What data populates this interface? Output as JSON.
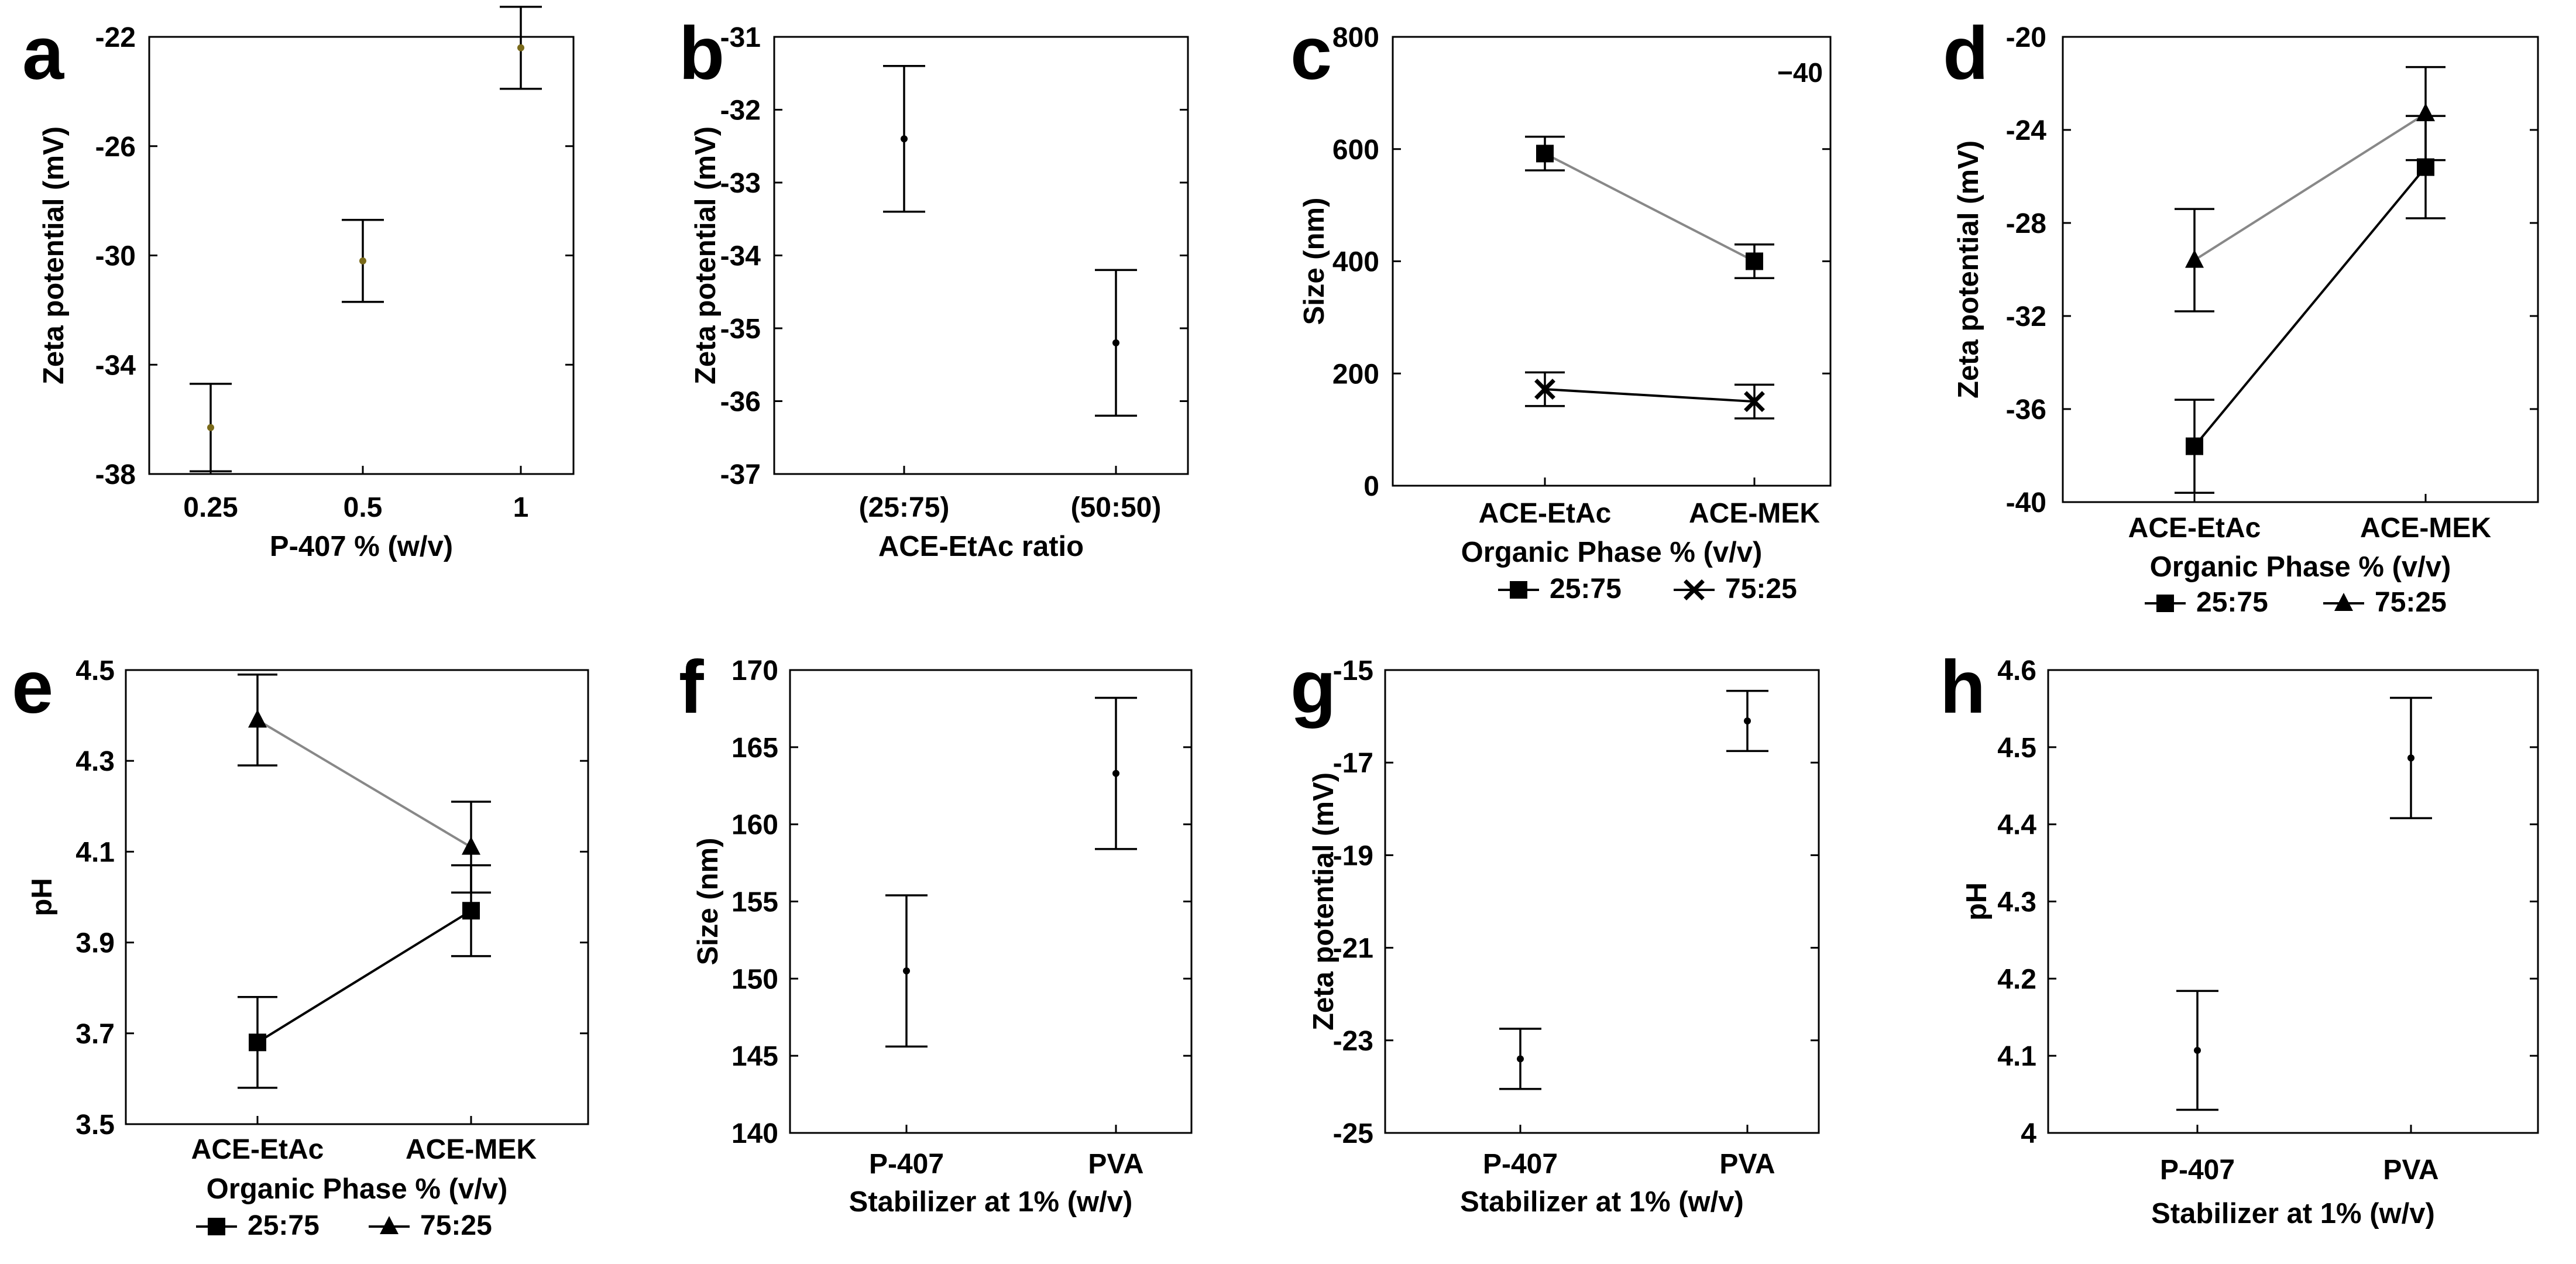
{
  "figure": {
    "chart_data": [
      {
        "panel": "a",
        "type": "scatter",
        "xlabel": "P-407 % (w/v)",
        "ylabel": "Zeta potential (mV)",
        "categories": [
          "0.25",
          "0.5",
          "1"
        ],
        "ylim": [
          -38,
          -22
        ],
        "yticks": [
          -38,
          -34,
          -30,
          -26,
          -22
        ],
        "ytick_labels": [
          "-38",
          "-34",
          "-30",
          "-26",
          "-22"
        ],
        "series": [
          {
            "name": "mean",
            "values": [
              -36.3,
              -30.2,
              -22.4
            ],
            "errors": [
              1.6,
              1.5,
              1.5
            ],
            "marker": "dot",
            "marker_color": "#7a6a1a"
          }
        ],
        "legend": []
      },
      {
        "panel": "b",
        "type": "scatter",
        "xlabel": "ACE-EtAc ratio",
        "ylabel": "Zeta potential (mV)",
        "categories": [
          "(25:75)",
          "(50:50)"
        ],
        "ylim": [
          -37,
          -31
        ],
        "yticks": [
          -37,
          -36,
          -35,
          -34,
          -33,
          -32,
          -31
        ],
        "ytick_labels": [
          "-37",
          "-36",
          "-35",
          "-34",
          "-33",
          "-32",
          "-31"
        ],
        "series": [
          {
            "name": "mean",
            "values": [
              -32.4,
              -35.2
            ],
            "errors": [
              1.0,
              1.0
            ],
            "marker": "dot",
            "marker_color": "#000000"
          }
        ],
        "legend": []
      },
      {
        "panel": "c",
        "type": "line",
        "xlabel": "Organic Phase % (v/v)",
        "ylabel": "Size (nm)",
        "categories": [
          "ACE-EtAc",
          "ACE-MEK"
        ],
        "ylim": [
          0,
          800
        ],
        "yticks": [
          0,
          200,
          400,
          600,
          800
        ],
        "ytick_labels": [
          "0",
          "200",
          "400",
          "600",
          "800"
        ],
        "annotation": "−40",
        "series": [
          {
            "name": "25:75",
            "values": [
              592,
              400
            ],
            "errors": [
              30,
              30
            ],
            "marker": "square",
            "line_color": "#888888"
          },
          {
            "name": "75:25",
            "values": [
              172,
              150
            ],
            "errors": [
              30,
              30
            ],
            "marker": "x",
            "line_color": "#000000"
          }
        ],
        "legend": [
          "25:75",
          "75:25"
        ]
      },
      {
        "panel": "d",
        "type": "line",
        "xlabel": "Organic Phase  % (v/v)",
        "ylabel": "Zeta potential (mV)",
        "categories": [
          "ACE-EtAc",
          "ACE-MEK"
        ],
        "ylim": [
          -40,
          -20
        ],
        "yticks": [
          -40,
          -36,
          -32,
          -28,
          -24,
          -20
        ],
        "ytick_labels": [
          "-40",
          "-36",
          "-32",
          "-28",
          "-24",
          "-20"
        ],
        "series": [
          {
            "name": "25:75",
            "values": [
              -37.6,
              -25.6
            ],
            "errors": [
              2.0,
              2.2
            ],
            "marker": "square",
            "line_color": "#000000"
          },
          {
            "name": "75:25",
            "values": [
              -29.6,
              -23.3
            ],
            "errors": [
              2.2,
              2.0
            ],
            "marker": "triangle",
            "line_color": "#888888"
          }
        ],
        "legend": [
          "25:75",
          "75:25"
        ]
      },
      {
        "panel": "e",
        "type": "line",
        "xlabel": "Organic Phase % (v/v)",
        "ylabel": "pH",
        "categories": [
          "ACE-EtAc",
          "ACE-MEK"
        ],
        "ylim": [
          3.5,
          4.5
        ],
        "yticks": [
          3.5,
          3.7,
          3.9,
          4.1,
          4.3,
          4.5
        ],
        "ytick_labels": [
          "3.5",
          "3.7",
          "3.9",
          "4.1",
          "4.3",
          "4.5"
        ],
        "series": [
          {
            "name": "25:75",
            "values": [
              3.68,
              3.97
            ],
            "errors": [
              0.1,
              0.1
            ],
            "marker": "square",
            "line_color": "#000000"
          },
          {
            "name": "75:25",
            "values": [
              4.39,
              4.11
            ],
            "errors": [
              0.1,
              0.1
            ],
            "marker": "triangle",
            "line_color": "#888888"
          }
        ],
        "legend": [
          "25:75",
          "75:25"
        ]
      },
      {
        "panel": "f",
        "type": "scatter",
        "xlabel": "Stabilizer at 1% (w/v)",
        "ylabel": "Size (nm)",
        "categories": [
          "P-407",
          "PVA"
        ],
        "ylim": [
          140,
          170
        ],
        "yticks": [
          140,
          145,
          150,
          155,
          160,
          165,
          170
        ],
        "ytick_labels": [
          "140",
          "145",
          "150",
          "155",
          "160",
          "165",
          "170"
        ],
        "series": [
          {
            "name": "mean",
            "values": [
              150.5,
              163.3
            ],
            "errors": [
              4.9,
              4.9
            ],
            "marker": "dot",
            "marker_color": "#000000"
          }
        ],
        "legend": []
      },
      {
        "panel": "g",
        "type": "scatter",
        "xlabel": "Stabilizer at 1% (w/v)",
        "ylabel": "Zeta potential (mV)",
        "categories": [
          "P-407",
          "PVA"
        ],
        "ylim": [
          -25,
          -15
        ],
        "yticks": [
          -25,
          -23,
          -21,
          -19,
          -17,
          -15
        ],
        "ytick_labels": [
          "-25",
          "-23",
          "-21",
          "-19",
          "-17",
          "-15"
        ],
        "series": [
          {
            "name": "mean",
            "values": [
              -23.4,
              -16.1
            ],
            "errors": [
              0.65,
              0.65
            ],
            "marker": "dot",
            "marker_color": "#000000"
          }
        ],
        "legend": []
      },
      {
        "panel": "h",
        "type": "scatter",
        "xlabel": "Stabilizer at 1% (w/v)",
        "ylabel": "pH",
        "categories": [
          "P-407",
          "PVA"
        ],
        "ylim": [
          4.0,
          4.6
        ],
        "yticks": [
          4.0,
          4.1,
          4.2,
          4.3,
          4.4,
          4.5,
          4.6
        ],
        "ytick_labels": [
          "4",
          "4.1",
          "4.2",
          "4.3",
          "4.4",
          "4.5",
          "4.6"
        ],
        "series": [
          {
            "name": "mean",
            "values": [
              4.107,
              4.486
            ],
            "errors": [
              0.077,
              0.078
            ],
            "marker": "dot",
            "marker_color": "#000000"
          }
        ],
        "legend": []
      }
    ]
  }
}
